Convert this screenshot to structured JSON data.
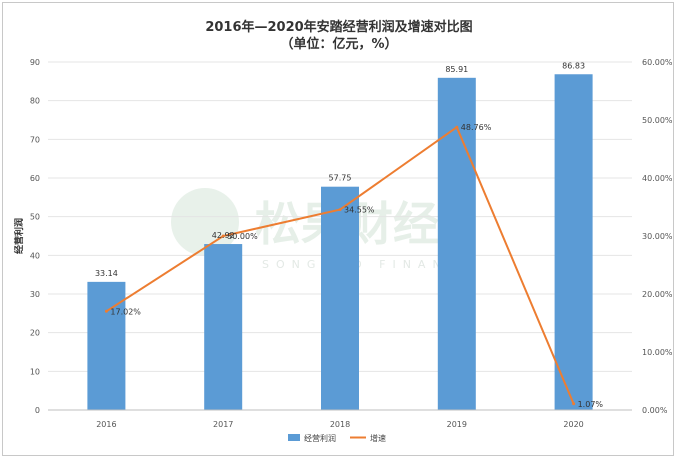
{
  "chart_data": {
    "type": "bar",
    "title": "2016年—2020年安踏经营利润及增速对比图",
    "subtitle": "（单位：亿元，%）",
    "categories": [
      "2016",
      "2017",
      "2018",
      "2019",
      "2020"
    ],
    "series": [
      {
        "name": "经营利润",
        "type": "bar",
        "axis": "left",
        "values": [
          33.14,
          42.92,
          57.75,
          85.91,
          86.83
        ],
        "labels": [
          "33.14",
          "42.92",
          "57.75",
          "85.91",
          "86.83"
        ],
        "color": "#5b9bd5"
      },
      {
        "name": "增速",
        "type": "line",
        "axis": "right",
        "values": [
          17.02,
          30.0,
          34.55,
          48.76,
          1.07
        ],
        "labels": [
          "17.02%",
          "30.00%",
          "34.55%",
          "48.76%",
          "1.07%"
        ],
        "color": "#ed7d31"
      }
    ],
    "ylabel": "经营利润",
    "ylim": [
      0,
      90
    ],
    "yticks": [
      "0",
      "10",
      "20",
      "30",
      "40",
      "50",
      "60",
      "70",
      "80",
      "90"
    ],
    "y2lim": [
      0,
      60
    ],
    "y2ticks": [
      "0.00%",
      "10.00%",
      "20.00%",
      "30.00%",
      "40.00%",
      "50.00%",
      "60.00%"
    ],
    "legend_position": "bottom",
    "grid": true
  },
  "watermark": {
    "text": "松果财经",
    "sub": "SONGGUO FINANCE"
  }
}
